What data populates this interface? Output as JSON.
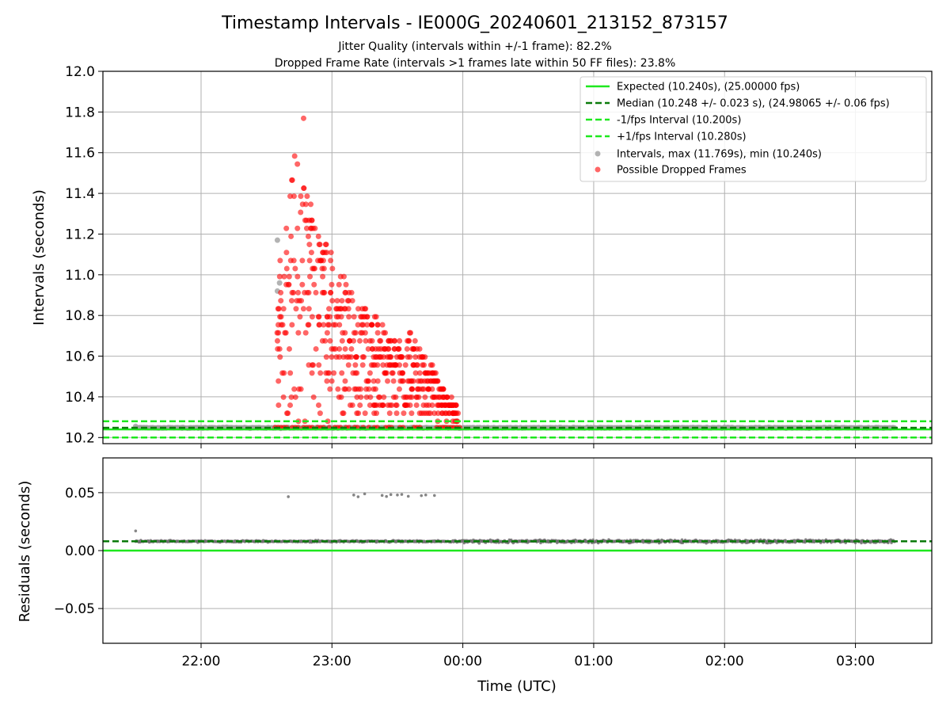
{
  "figure": {
    "title": "Timestamp Intervals - IE000G_20240601_213152_873157",
    "subtitle_line1": "Jitter Quality (intervals within +/-1 frame): 82.2%",
    "subtitle_line2": "Dropped Frame Rate (intervals >1 frames late within 50 FF files): 23.8%",
    "xlabel": "Time (UTC)"
  },
  "chart_data": [
    {
      "type": "scatter",
      "panel": "top",
      "ylabel": "Intervals (seconds)",
      "xlim": [
        "21:15",
        "03:35"
      ],
      "ylim": [
        10.17,
        12.0
      ],
      "yticks": [
        "10.2",
        "10.4",
        "10.6",
        "10.8",
        "11.0",
        "11.2",
        "11.4",
        "11.6",
        "11.8",
        "12.0"
      ],
      "ytick_values": [
        10.2,
        10.4,
        10.6,
        10.8,
        11.0,
        11.2,
        11.4,
        11.6,
        11.8,
        12.0
      ],
      "xticks": [
        "22:00",
        "23:00",
        "00:00",
        "01:00",
        "02:00",
        "03:00"
      ],
      "grid": true,
      "legend_position": "top-right",
      "lines": [
        {
          "name": "Expected (10.240s), (25.00000 fps)",
          "y": 10.24,
          "color": "#1ee81e",
          "style": "solid"
        },
        {
          "name": "Median (10.248 +/- 0.023 s), (24.98065 +/- 0.06 fps)",
          "y": 10.248,
          "color": "#0a7a0a",
          "style": "dashed"
        },
        {
          "name": "-1/fps Interval (10.200s)",
          "y": 10.2,
          "color": "#1ee81e",
          "style": "dashed"
        },
        {
          "name": "+1/fps Interval (10.280s)",
          "y": 10.28,
          "color": "#1ee81e",
          "style": "dashed"
        }
      ],
      "series": [
        {
          "name": "Intervals, max (11.769s), min (10.240s)",
          "color": "#a0a0a0",
          "x_range": [
            "21:30",
            "03:18"
          ],
          "y_baseline": 10.248,
          "y_max": 11.769,
          "y_min": 10.24
        },
        {
          "name": "Possible Dropped Frames",
          "color": "#ff0000",
          "x_range": [
            "22:34",
            "23:59"
          ],
          "y_max": 11.769,
          "y_min": 10.25
        }
      ]
    },
    {
      "type": "scatter",
      "panel": "bottom",
      "ylabel": "Residuals (seconds)",
      "xlim": [
        "21:15",
        "03:35"
      ],
      "ylim": [
        -0.08,
        0.08
      ],
      "yticks": [
        "−0.05",
        "0.00",
        "0.05"
      ],
      "ytick_values": [
        -0.05,
        0.0,
        0.05
      ],
      "xticks": [
        "22:00",
        "23:00",
        "00:00",
        "01:00",
        "02:00",
        "03:00"
      ],
      "grid": true,
      "lines": [
        {
          "y": 0.0,
          "color": "#1ee81e",
          "style": "solid"
        },
        {
          "y": 0.008,
          "color": "#0a7a0a",
          "style": "dashed"
        }
      ],
      "series": [
        {
          "color": "#707070",
          "x_range": [
            "21:30",
            "03:18"
          ],
          "y_baseline": 0.008,
          "outliers_y": 0.049
        }
      ]
    }
  ]
}
